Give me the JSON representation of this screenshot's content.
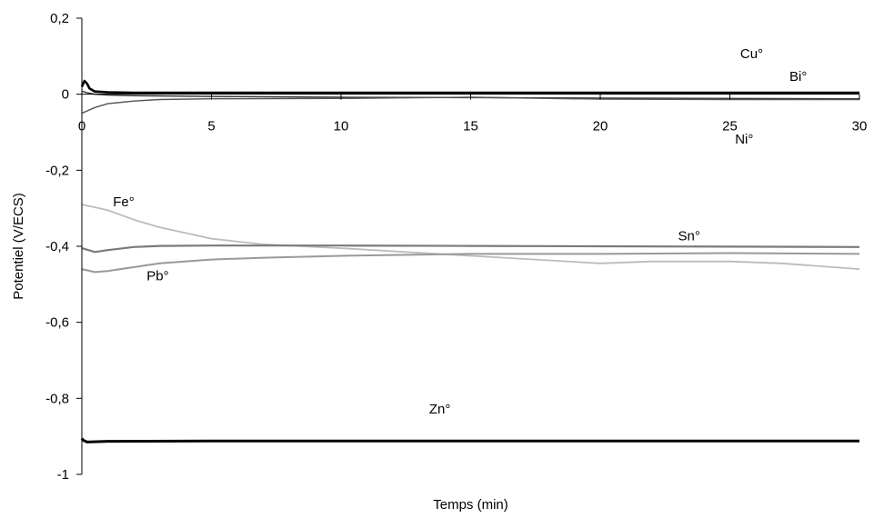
{
  "chart_data": {
    "type": "line",
    "title": "",
    "xlabel": "Temps (min)",
    "ylabel": "Potentiel (V/ECS)",
    "xlim": [
      0,
      30
    ],
    "ylim": [
      -1,
      0.2
    ],
    "x_ticks": [
      "0",
      "5",
      "10",
      "15",
      "20",
      "25",
      "30"
    ],
    "y_ticks": [
      "0,2",
      "0",
      "-0,2",
      "-0,4",
      "-0,6",
      "-0,8",
      "-1"
    ],
    "grid": false,
    "legend": "none",
    "series": [
      {
        "name": "Cu°",
        "color": "#000000",
        "width": 2.6,
        "x": [
          0,
          0.1,
          0.2,
          0.3,
          0.5,
          1,
          2,
          5,
          10,
          15,
          20,
          25,
          30
        ],
        "y": [
          0.02,
          0.035,
          0.028,
          0.015,
          0.007,
          0.005,
          0.004,
          0.004,
          0.004,
          0.004,
          0.004,
          0.004,
          0.004
        ]
      },
      {
        "name": "Bi°",
        "color": "#333333",
        "width": 1.4,
        "x": [
          0,
          0.2,
          0.5,
          1,
          2,
          5,
          10,
          15,
          20,
          25,
          30
        ],
        "y": [
          0.008,
          0.004,
          0.0,
          -0.002,
          -0.004,
          -0.006,
          -0.008,
          -0.009,
          -0.01,
          -0.011,
          -0.012
        ]
      },
      {
        "name": "Ni°",
        "color": "#555555",
        "width": 1.4,
        "x": [
          0,
          0.5,
          1,
          2,
          3,
          5,
          10,
          15,
          20,
          25,
          30
        ],
        "y": [
          -0.05,
          -0.035,
          -0.025,
          -0.018,
          -0.014,
          -0.012,
          -0.011,
          -0.008,
          -0.013,
          -0.014,
          -0.014
        ]
      },
      {
        "name": "Fe°",
        "color": "#bbbbbb",
        "width": 1.8,
        "x": [
          0,
          1,
          2,
          3,
          5,
          7,
          10,
          15,
          20,
          22,
          25,
          27,
          30
        ],
        "y": [
          -0.29,
          -0.305,
          -0.33,
          -0.35,
          -0.38,
          -0.395,
          -0.405,
          -0.425,
          -0.445,
          -0.44,
          -0.44,
          -0.445,
          -0.46
        ]
      },
      {
        "name": "Sn°",
        "color": "#7a7a7a",
        "width": 2.2,
        "x": [
          0,
          0.5,
          1,
          2,
          3,
          5,
          10,
          15,
          20,
          25,
          30
        ],
        "y": [
          -0.405,
          -0.415,
          -0.41,
          -0.402,
          -0.399,
          -0.398,
          -0.398,
          -0.399,
          -0.4,
          -0.401,
          -0.402
        ]
      },
      {
        "name": "Pb°",
        "color": "#999999",
        "width": 2.0,
        "x": [
          0,
          0.5,
          1,
          2,
          3,
          5,
          7,
          10,
          15,
          20,
          25,
          30
        ],
        "y": [
          -0.46,
          -0.468,
          -0.465,
          -0.455,
          -0.445,
          -0.435,
          -0.43,
          -0.425,
          -0.42,
          -0.42,
          -0.418,
          -0.42
        ]
      },
      {
        "name": "Zn°",
        "color": "#000000",
        "width": 3.0,
        "x": [
          0,
          0.05,
          0.2,
          1,
          5,
          10,
          15,
          20,
          25,
          30
        ],
        "y": [
          -0.905,
          -0.91,
          -0.915,
          -0.913,
          -0.912,
          -0.912,
          -0.912,
          -0.912,
          -0.912,
          -0.912
        ]
      }
    ],
    "annotations": [
      {
        "text": "Cu°",
        "x": 25.4,
        "y": 0.095
      },
      {
        "text": "Bi°",
        "x": 27.3,
        "y": 0.035
      },
      {
        "text": "Ni°",
        "x": 25.2,
        "y": -0.13
      },
      {
        "text": "Fe°",
        "x": 1.2,
        "y": -0.295
      },
      {
        "text": "Sn°",
        "x": 23.0,
        "y": -0.385
      },
      {
        "text": "Pb°",
        "x": 2.5,
        "y": -0.49
      },
      {
        "text": "Zn°",
        "x": 13.4,
        "y": -0.84
      }
    ]
  }
}
